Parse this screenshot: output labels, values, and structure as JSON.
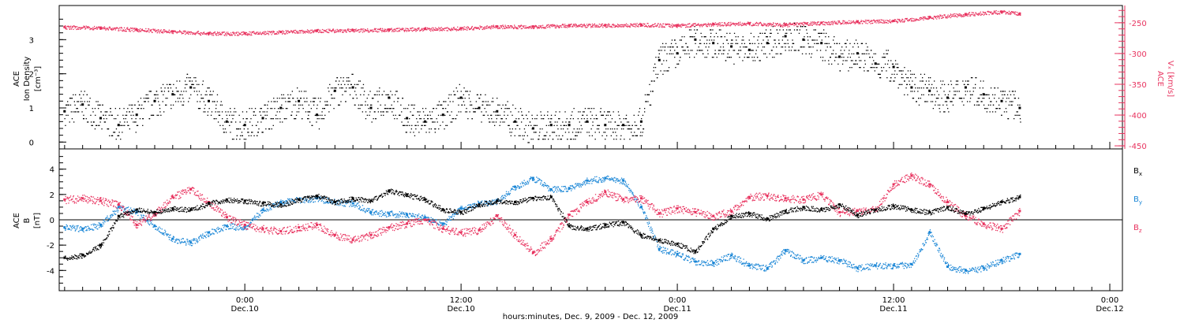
{
  "colors": {
    "black": "#000000",
    "pink": "#e8335f",
    "blue": "#1a86d6"
  },
  "x_axis": {
    "title": "hours:minutes, Dec. 9, 2009 - Dec. 12, 2009",
    "range_hours": [
      -10.3,
      48.7
    ],
    "ticks": [
      {
        "hours": 0,
        "time": "0:00",
        "date": "Dec.10"
      },
      {
        "hours": 12,
        "time": "12:00",
        "date": "Dec.10"
      },
      {
        "hours": 24,
        "time": "0:00",
        "date": "Dec.11"
      },
      {
        "hours": 36,
        "time": "12:00",
        "date": "Dec.11"
      },
      {
        "hours": 48,
        "time": "0:00",
        "date": "Dec.12"
      }
    ]
  },
  "chart_data": [
    {
      "type": "scatter",
      "panel": "top",
      "left_axis": {
        "label_lines": [
          "ACE",
          "Ion Density"
        ],
        "unit": "[cm⁻³]",
        "ylim": [
          -0.2,
          4.0
        ],
        "ticks": [
          "0",
          "1",
          "2",
          "3"
        ],
        "color": "#000000"
      },
      "right_axis": {
        "label_lines": [
          "ACE"
        ],
        "unit": "Vₓ [km/s]",
        "ylim": [
          -455,
          -222
        ],
        "ticks": [
          "-250",
          "-300",
          "-350",
          "-400",
          "-450"
        ],
        "color": "#e8335f"
      },
      "series": [
        {
          "axis": "left",
          "color": "#000000",
          "x_hours": [
            -10,
            -9,
            -8,
            -7,
            -6,
            -5,
            -4,
            -3,
            -2,
            -1,
            0,
            1,
            2,
            3,
            4,
            5,
            6,
            7,
            8,
            9,
            10,
            11,
            12,
            13,
            14,
            15,
            16,
            17,
            18,
            19,
            20,
            21,
            22,
            23,
            24,
            25,
            26,
            27,
            28,
            29,
            30,
            31,
            32,
            33,
            34,
            35,
            36,
            37,
            38,
            39,
            40,
            41,
            42,
            43
          ],
          "values": [
            0.9,
            1.1,
            0.7,
            0.5,
            0.8,
            1.2,
            1.4,
            1.6,
            1.2,
            0.6,
            0.5,
            0.7,
            1.0,
            1.2,
            0.8,
            1.5,
            1.6,
            1.0,
            1.3,
            0.7,
            0.6,
            0.8,
            1.3,
            1.0,
            0.9,
            0.6,
            0.4,
            0.5,
            0.5,
            0.6,
            0.5,
            0.5,
            0.6,
            2.4,
            2.6,
            3.0,
            2.9,
            2.8,
            2.7,
            2.9,
            3.1,
            3.0,
            2.9,
            2.5,
            2.6,
            2.3,
            2.2,
            1.6,
            1.5,
            1.3,
            1.6,
            1.4,
            1.2,
            1.0
          ]
        },
        {
          "axis": "right",
          "color": "#e8335f",
          "x_hours": [
            -10,
            -8,
            -6,
            -4,
            -2,
            0,
            2,
            4,
            6,
            8,
            10,
            12,
            14,
            16,
            18,
            20,
            22,
            24,
            26,
            28,
            30,
            32,
            34,
            36,
            38,
            40,
            42,
            43
          ],
          "values": [
            -257,
            -258,
            -261,
            -264,
            -267,
            -267,
            -265,
            -263,
            -262,
            -261,
            -260,
            -259,
            -256,
            -256,
            -254,
            -254,
            -253,
            -254,
            -252,
            -251,
            -253,
            -250,
            -248,
            -247,
            -241,
            -236,
            -232,
            -235
          ]
        }
      ]
    },
    {
      "type": "scatter",
      "panel": "bottom",
      "left_axis": {
        "label_lines": [
          "ACE",
          "B"
        ],
        "unit": "[nT]",
        "ylim": [
          -5.6,
          5.6
        ],
        "ticks": [
          "4",
          "2",
          "0",
          "-2",
          "-4"
        ],
        "color": "#000000"
      },
      "legend": [
        {
          "main": "B",
          "sub": "x",
          "color": "#000000"
        },
        {
          "main": "B",
          "sub": "y",
          "color": "#1a86d6"
        },
        {
          "main": "B",
          "sub": "z",
          "color": "#e8335f"
        }
      ],
      "series": [
        {
          "name": "Bx",
          "color": "#000000",
          "x_hours": [
            -10,
            -9,
            -8,
            -7,
            -6,
            -5,
            -4,
            -3,
            -2,
            -1,
            0,
            1,
            2,
            3,
            4,
            5,
            6,
            7,
            8,
            9,
            10,
            11,
            12,
            13,
            14,
            15,
            16,
            17,
            18,
            19,
            20,
            21,
            22,
            23,
            24,
            25,
            26,
            27,
            28,
            29,
            30,
            31,
            32,
            33,
            34,
            35,
            36,
            37,
            38,
            39,
            40,
            41,
            42,
            43
          ],
          "values": [
            -3.0,
            -2.8,
            -2.0,
            0.3,
            0.8,
            0.6,
            0.9,
            0.8,
            1.3,
            1.6,
            1.5,
            1.3,
            1.2,
            1.6,
            1.9,
            1.4,
            1.7,
            1.5,
            2.3,
            2.0,
            1.6,
            0.8,
            0.6,
            1.2,
            1.5,
            1.4,
            1.7,
            1.8,
            -0.5,
            -0.7,
            -0.4,
            -0.2,
            -1.2,
            -1.6,
            -1.9,
            -2.5,
            -0.7,
            0.3,
            0.5,
            0.1,
            0.7,
            1.0,
            0.8,
            1.2,
            0.4,
            0.8,
            1.1,
            0.8,
            0.6,
            1.0,
            0.5,
            0.9,
            1.4,
            1.8
          ]
        },
        {
          "name": "By",
          "color": "#1a86d6",
          "x_hours": [
            -10,
            -9,
            -8,
            -7,
            -6,
            -5,
            -4,
            -3,
            -2,
            -1,
            0,
            1,
            2,
            3,
            4,
            5,
            6,
            7,
            8,
            9,
            10,
            11,
            12,
            13,
            14,
            15,
            16,
            17,
            18,
            19,
            20,
            21,
            22,
            23,
            24,
            25,
            26,
            27,
            28,
            29,
            30,
            31,
            32,
            33,
            34,
            35,
            36,
            37,
            38,
            39,
            40,
            41,
            42,
            43
          ],
          "values": [
            -0.6,
            -0.7,
            -0.4,
            1.0,
            0.6,
            -0.5,
            -1.5,
            -1.8,
            -1.0,
            -0.5,
            -0.6,
            0.8,
            1.4,
            1.6,
            1.7,
            1.4,
            1.3,
            0.6,
            0.5,
            0.4,
            0.2,
            -0.3,
            0.9,
            1.3,
            1.5,
            2.6,
            3.3,
            2.4,
            2.5,
            3.1,
            3.3,
            3.1,
            1.0,
            -2.3,
            -2.7,
            -3.3,
            -3.4,
            -2.8,
            -3.6,
            -3.8,
            -2.4,
            -3.2,
            -3.0,
            -3.2,
            -3.8,
            -3.6,
            -3.6,
            -3.5,
            -1.0,
            -3.7,
            -4.0,
            -3.8,
            -3.2,
            -2.7
          ]
        },
        {
          "name": "Bz",
          "color": "#e8335f",
          "x_hours": [
            -10,
            -9,
            -8,
            -7,
            -6,
            -5,
            -4,
            -3,
            -2,
            -1,
            0,
            1,
            2,
            3,
            4,
            5,
            6,
            7,
            8,
            9,
            10,
            11,
            12,
            13,
            14,
            15,
            16,
            17,
            18,
            19,
            20,
            21,
            22,
            23,
            24,
            25,
            26,
            27,
            28,
            29,
            30,
            31,
            32,
            33,
            34,
            35,
            36,
            37,
            38,
            39,
            40,
            41,
            42,
            43
          ],
          "values": [
            1.6,
            1.7,
            1.5,
            1.2,
            -0.4,
            0.5,
            1.8,
            2.4,
            1.4,
            0.2,
            -0.4,
            -0.7,
            -0.9,
            -0.6,
            -0.4,
            -1.2,
            -1.6,
            -1.2,
            -0.6,
            -0.3,
            0.0,
            -0.7,
            -1.0,
            -0.8,
            0.3,
            -1.2,
            -2.6,
            -1.5,
            0.4,
            1.4,
            2.2,
            1.6,
            1.7,
            0.5,
            0.9,
            0.6,
            0.3,
            0.7,
            1.8,
            1.9,
            1.7,
            1.6,
            2.0,
            0.6,
            0.7,
            0.8,
            2.8,
            3.5,
            2.8,
            1.4,
            0.3,
            -0.3,
            -0.7,
            0.7
          ]
        }
      ]
    }
  ]
}
